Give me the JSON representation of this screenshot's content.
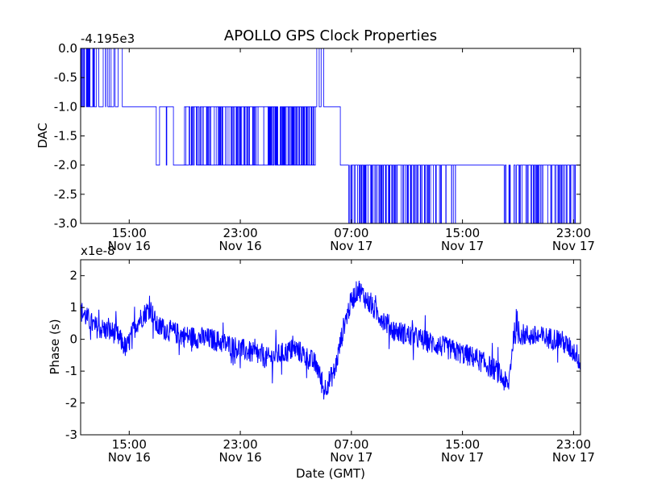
{
  "chart_data": [
    {
      "type": "line",
      "title": "APOLLO GPS Clock Properties",
      "ylabel": "DAC",
      "xlabel": "",
      "offset_label": "-4.195e3",
      "x_range_hours": [
        11.5,
        47.5
      ],
      "ylim": [
        -3.0,
        0.0
      ],
      "yticks": [
        "0.0",
        "-0.5",
        "-1.0",
        "-1.5",
        "-2.0",
        "-2.5",
        "-3.0"
      ],
      "xticks": [
        {
          "time": "15:00",
          "date": "Nov 16"
        },
        {
          "time": "23:00",
          "date": "Nov 16"
        },
        {
          "time": "07:00",
          "date": "Nov 17"
        },
        {
          "time": "15:00",
          "date": "Nov 17"
        },
        {
          "time": "23:00",
          "date": "Nov 17"
        }
      ],
      "xtick_hours": [
        15,
        23,
        31,
        39,
        47
      ],
      "color": "#0000ff",
      "series": [
        {
          "segments": [
            {
              "from": 11.5,
              "to": 12.5,
              "level": -1.0,
              "toggle_to": 0.0,
              "flips": 12
            },
            {
              "from": 12.5,
              "to": 14.5,
              "level": -1.0,
              "toggle_to": 0.0,
              "flips": 6
            },
            {
              "from": 14.5,
              "to": 16.5,
              "level": -1.0,
              "toggle_to": -1.0,
              "flips": 0
            },
            {
              "from": 16.5,
              "to": 19.3,
              "level": -1.0,
              "toggle_to": -2.0,
              "flips": 4
            },
            {
              "from": 19.3,
              "to": 25.0,
              "level": -1.0,
              "toggle_to": -2.0,
              "flips": 40
            },
            {
              "from": 25.0,
              "to": 28.4,
              "level": -1.0,
              "toggle_to": -2.0,
              "flips": 44
            },
            {
              "from": 28.4,
              "to": 29.0,
              "level": -1.0,
              "toggle_to": 0.0,
              "flips": 2
            },
            {
              "from": 29.0,
              "to": 30.2,
              "level": -1.0,
              "toggle_to": -1.0,
              "flips": 0
            },
            {
              "from": 30.2,
              "to": 30.8,
              "level": -2.0,
              "toggle_to": -2.0,
              "flips": 0
            },
            {
              "from": 30.8,
              "to": 38.5,
              "level": -3.0,
              "toggle_to": -2.0,
              "flips": 60
            },
            {
              "from": 38.5,
              "to": 42.0,
              "level": -2.0,
              "toggle_to": -2.0,
              "flips": 0
            },
            {
              "from": 42.0,
              "to": 47.5,
              "level": -3.0,
              "toggle_to": -2.0,
              "flips": 30
            }
          ]
        }
      ]
    },
    {
      "type": "line",
      "title": "",
      "ylabel": "Phase (s)",
      "xlabel": "Date (GMT)",
      "offset_label": "x1e-8",
      "x_range_hours": [
        11.5,
        47.5
      ],
      "ylim": [
        -3,
        2.5
      ],
      "yticks": [
        "2",
        "1",
        "0",
        "-1",
        "-2",
        "-3"
      ],
      "ytick_values": [
        2,
        1,
        0,
        -1,
        -2,
        -3
      ],
      "xticks": [
        {
          "time": "15:00",
          "date": "Nov 16"
        },
        {
          "time": "23:00",
          "date": "Nov 16"
        },
        {
          "time": "07:00",
          "date": "Nov 17"
        },
        {
          "time": "15:00",
          "date": "Nov 17"
        },
        {
          "time": "23:00",
          "date": "Nov 17"
        }
      ],
      "xtick_hours": [
        15,
        23,
        31,
        39,
        47
      ],
      "color": "#0000ff",
      "series": [
        {
          "trend": [
            [
              11.5,
              0.9
            ],
            [
              12.5,
              0.4
            ],
            [
              14.0,
              0.2
            ],
            [
              14.8,
              -0.3
            ],
            [
              15.5,
              0.5
            ],
            [
              16.5,
              1.0
            ],
            [
              17.0,
              0.4
            ],
            [
              19.0,
              0.1
            ],
            [
              21.0,
              0.0
            ],
            [
              23.0,
              -0.3
            ],
            [
              25.0,
              -0.6
            ],
            [
              27.0,
              -0.3
            ],
            [
              28.5,
              -0.8
            ],
            [
              29.0,
              -1.6
            ],
            [
              29.8,
              -1.0
            ],
            [
              30.5,
              0.5
            ],
            [
              31.0,
              1.2
            ],
            [
              31.5,
              1.6
            ],
            [
              32.5,
              1.0
            ],
            [
              34.0,
              0.3
            ],
            [
              36.0,
              0.0
            ],
            [
              38.0,
              -0.3
            ],
            [
              40.0,
              -0.6
            ],
            [
              41.5,
              -1.0
            ],
            [
              42.3,
              -1.5
            ],
            [
              42.7,
              0.2
            ],
            [
              44.0,
              0.1
            ],
            [
              46.0,
              0.0
            ],
            [
              47.3,
              -0.5
            ],
            [
              47.5,
              -0.9
            ]
          ],
          "noise_amplitude": 0.35
        }
      ]
    }
  ]
}
